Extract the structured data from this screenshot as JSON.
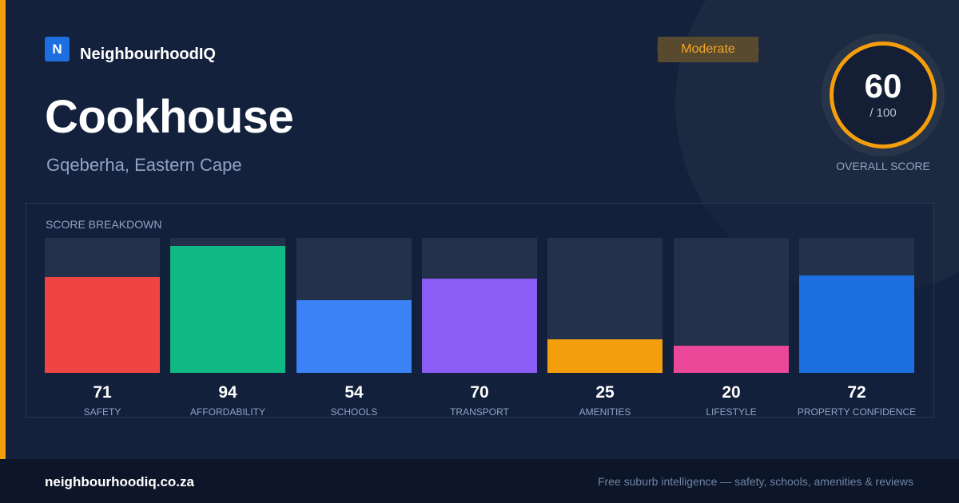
{
  "brand": {
    "logo_letter": "N",
    "name": "NeighbourhoodIQ",
    "logo_color": "#1d6fe0"
  },
  "badge": {
    "label": "Moderate",
    "color": "#f5a623"
  },
  "suburb": {
    "name": "Cookhouse",
    "location": "Gqeberha, Eastern Cape"
  },
  "overall": {
    "score": "60",
    "max": "/ 100",
    "caption": "OVERALL SCORE",
    "ring_color": "#f59e0b"
  },
  "breakdown": {
    "title": "SCORE BREAKDOWN"
  },
  "chart_data": {
    "type": "bar",
    "categories": [
      "SAFETY",
      "AFFORDABILITY",
      "SCHOOLS",
      "TRANSPORT",
      "AMENITIES",
      "LIFESTYLE",
      "PROPERTY CONFIDENCE"
    ],
    "values": [
      71,
      94,
      54,
      70,
      25,
      20,
      72
    ],
    "colors": [
      "#ef4444",
      "#10b981",
      "#3b82f6",
      "#8b5cf6",
      "#f59e0b",
      "#ec4899",
      "#1d6fe0"
    ],
    "ylim": [
      0,
      100
    ],
    "title": "",
    "xlabel": "",
    "ylabel": ""
  },
  "footer": {
    "url": "neighbourhoodiq.co.za",
    "tagline": "Free suburb intelligence — safety, schools, amenities & reviews"
  }
}
